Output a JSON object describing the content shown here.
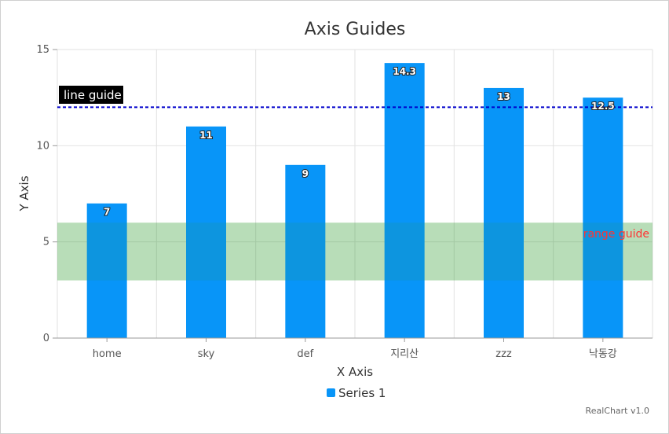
{
  "chart_data": {
    "type": "bar",
    "title": "Axis Guides",
    "xlabel": "X Axis",
    "ylabel": "Y Axis",
    "categories": [
      "home",
      "sky",
      "def",
      "지리산",
      "zzz",
      "낙동강"
    ],
    "series": [
      {
        "name": "Series 1",
        "values": [
          7,
          11,
          9,
          14.3,
          13,
          12.5
        ]
      }
    ],
    "ylim": [
      0,
      15
    ],
    "yticks": [
      0,
      5,
      10,
      15
    ],
    "grid": true,
    "legend": "bottom-center",
    "guides": {
      "line": {
        "value": 12,
        "label": "line guide",
        "color": "#0000cc"
      },
      "range": {
        "from": 3,
        "to": 6,
        "label": "range guide",
        "color": "#2e9b2e",
        "label_color": "#ff3333"
      }
    },
    "colors": {
      "bar": "#0895f8"
    }
  },
  "credit": "RealChart v1.0"
}
